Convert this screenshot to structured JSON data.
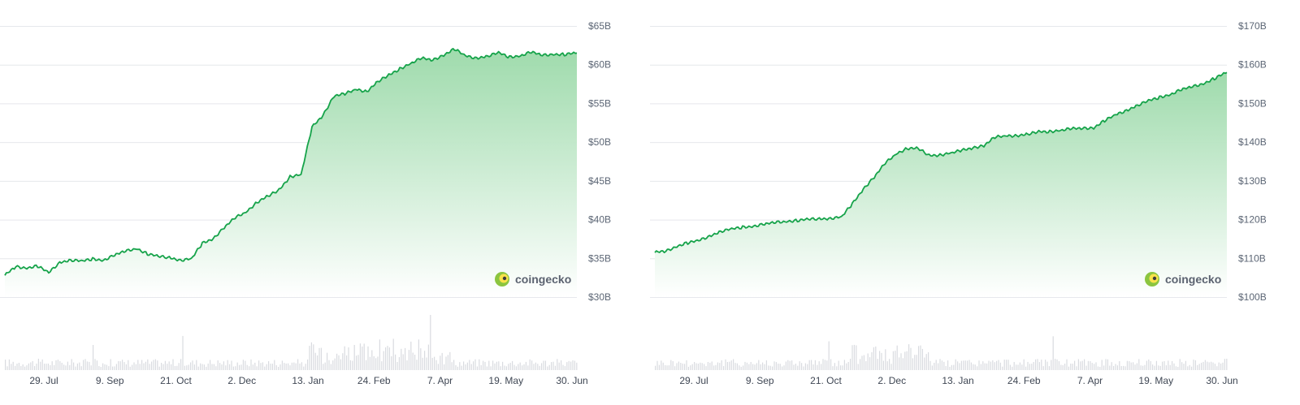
{
  "brand": {
    "name": "coingecko",
    "icon": "coingecko-gecko-icon"
  },
  "colors": {
    "line": "#16a34a",
    "fill_top": "#9ad9a8",
    "fill_bottom": "#ffffff",
    "grid": "#e6e8ec",
    "volume": "#d9dbe0"
  },
  "chart_data": [
    {
      "type": "area",
      "title": "",
      "xlabel": "",
      "ylabel": "",
      "x_tick_labels": [
        "29. Jul",
        "9. Sep",
        "21. Oct",
        "2. Dec",
        "13. Jan",
        "24. Feb",
        "7. Apr",
        "19. May",
        "30. Jun"
      ],
      "y_tick_labels": [
        "$65B",
        "$60B",
        "$55B",
        "$50B",
        "$45B",
        "$40B",
        "$35B",
        "$30B"
      ],
      "ylim": [
        30,
        65
      ],
      "y_unit": "billions USD",
      "grid": true,
      "series": [
        {
          "x": [
            "2023-07-01",
            "2023-07-08",
            "2023-07-15",
            "2023-07-22",
            "2023-07-29",
            "2023-08-05",
            "2023-08-12",
            "2023-08-19",
            "2023-08-26",
            "2023-09-02",
            "2023-09-09",
            "2023-09-16",
            "2023-09-23",
            "2023-09-30",
            "2023-10-07",
            "2023-10-14",
            "2023-10-21",
            "2023-10-28",
            "2023-11-04",
            "2023-11-11",
            "2023-11-18",
            "2023-11-25",
            "2023-12-02",
            "2023-12-09",
            "2023-12-16",
            "2023-12-23",
            "2023-12-30",
            "2024-01-06",
            "2024-01-13",
            "2024-01-20",
            "2024-01-27",
            "2024-02-03",
            "2024-02-10",
            "2024-02-17",
            "2024-02-24",
            "2024-03-02",
            "2024-03-09",
            "2024-03-16",
            "2024-03-23",
            "2024-03-30",
            "2024-04-06",
            "2024-04-13",
            "2024-04-20",
            "2024-04-27",
            "2024-05-04",
            "2024-05-11",
            "2024-05-18",
            "2024-05-25",
            "2024-06-01",
            "2024-06-08",
            "2024-06-15",
            "2024-06-22",
            "2024-06-30"
          ],
          "values": [
            32.8,
            33.9,
            33.8,
            34.0,
            33.1,
            34.5,
            34.8,
            34.6,
            34.9,
            34.8,
            35.4,
            35.9,
            36.3,
            35.6,
            35.2,
            35.1,
            34.8,
            34.9,
            36.9,
            37.6,
            39.0,
            40.2,
            41.0,
            42.3,
            43.0,
            43.8,
            45.6,
            45.8,
            51.9,
            53.5,
            56.0,
            56.2,
            56.8,
            56.6,
            57.8,
            58.6,
            59.5,
            60.2,
            60.8,
            60.6,
            61.3,
            62.0,
            61.1,
            60.9,
            61.1,
            61.5,
            61.0,
            61.2,
            61.6,
            61.2,
            61.4,
            61.3,
            61.5
          ]
        }
      ]
    },
    {
      "type": "area",
      "title": "",
      "xlabel": "",
      "ylabel": "",
      "x_tick_labels": [
        "29. Jul",
        "9. Sep",
        "21. Oct",
        "2. Dec",
        "13. Jan",
        "24. Feb",
        "7. Apr",
        "19. May",
        "30. Jun"
      ],
      "y_tick_labels": [
        "$170B",
        "$160B",
        "$150B",
        "$140B",
        "$130B",
        "$120B",
        "$110B",
        "$100B"
      ],
      "ylim": [
        100,
        170
      ],
      "y_unit": "billions USD",
      "grid": true,
      "series": [
        {
          "x": [
            "2023-07-01",
            "2023-07-08",
            "2023-07-15",
            "2023-07-22",
            "2023-07-29",
            "2023-08-05",
            "2023-08-12",
            "2023-08-19",
            "2023-08-26",
            "2023-09-02",
            "2023-09-09",
            "2023-09-16",
            "2023-09-23",
            "2023-09-30",
            "2023-10-07",
            "2023-10-14",
            "2023-10-21",
            "2023-10-28",
            "2023-11-04",
            "2023-11-11",
            "2023-11-18",
            "2023-11-25",
            "2023-12-02",
            "2023-12-09",
            "2023-12-16",
            "2023-12-23",
            "2023-12-30",
            "2024-01-06",
            "2024-01-13",
            "2024-01-20",
            "2024-01-27",
            "2024-02-03",
            "2024-02-10",
            "2024-02-17",
            "2024-02-24",
            "2024-03-02",
            "2024-03-09",
            "2024-03-16",
            "2024-03-23",
            "2024-03-30",
            "2024-04-06",
            "2024-04-13",
            "2024-04-20",
            "2024-04-27",
            "2024-05-04",
            "2024-05-11",
            "2024-05-18",
            "2024-05-25",
            "2024-06-01",
            "2024-06-08",
            "2024-06-15",
            "2024-06-22",
            "2024-06-30"
          ],
          "values": [
            111.5,
            111.8,
            113.2,
            114.0,
            114.5,
            115.8,
            117.0,
            117.5,
            118.0,
            118.4,
            118.8,
            119.2,
            119.6,
            119.8,
            120.0,
            120.2,
            120.4,
            120.6,
            124.0,
            128.0,
            131.0,
            134.5,
            137.0,
            138.5,
            138.3,
            136.5,
            136.8,
            137.2,
            137.8,
            138.6,
            139.2,
            141.2,
            141.6,
            141.8,
            142.0,
            142.6,
            142.8,
            143.1,
            143.4,
            143.6,
            143.8,
            145.5,
            147.0,
            148.3,
            149.5,
            150.6,
            151.6,
            152.4,
            153.5,
            154.3,
            155.2,
            156.4,
            158.0
          ]
        }
      ]
    }
  ]
}
